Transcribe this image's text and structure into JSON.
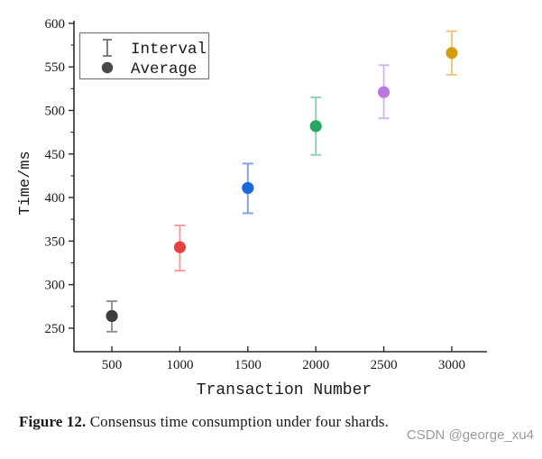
{
  "chart_data": {
    "type": "scatter",
    "title": "",
    "xlabel": "Transaction Number",
    "ylabel": "Time/ms",
    "x": [
      500,
      1000,
      1500,
      2000,
      2500,
      3000
    ],
    "series": [
      {
        "name": "Average",
        "marker": "circle",
        "values": [
          264,
          343,
          411,
          482,
          521,
          566
        ]
      },
      {
        "name": "Interval",
        "marker": "errorbar",
        "low": [
          246,
          316,
          382,
          449,
          491,
          541
        ],
        "high": [
          281,
          368,
          439,
          515,
          552,
          591
        ]
      }
    ],
    "point_colors": [
      "#3d3d3d",
      "#e84040",
      "#1c68de",
      "#2aa562",
      "#b878e0",
      "#d29e10"
    ],
    "errorbar_colors": [
      "#8f8f8f",
      "#f09a9a",
      "#74a2ec",
      "#8fd0ac",
      "#d4b4ee",
      "#e8c978"
    ],
    "xlim": [
      221,
      3259
    ],
    "ylim": [
      223,
      603
    ],
    "x_ticks": [
      500,
      1000,
      1500,
      2000,
      2500,
      3000
    ],
    "y_ticks": [
      250,
      300,
      350,
      400,
      450,
      500,
      550,
      600
    ],
    "y_minor_ticks": [
      275,
      325,
      375,
      425,
      475,
      525,
      575
    ],
    "grid": false,
    "legend": {
      "position": "upper-left",
      "entries": [
        {
          "label": "Interval",
          "icon": "errorbar-icon",
          "color": "#6a6a6a"
        },
        {
          "label": "Average",
          "icon": "circle-icon",
          "color": "#484848"
        }
      ]
    },
    "axis_color": "#2b2b2b",
    "tick_label_color": "#1a1a1a"
  },
  "caption": {
    "label": "Figure 12.",
    "text": " Consensus time consumption under four shards."
  },
  "watermark": "CSDN @george_xu4"
}
